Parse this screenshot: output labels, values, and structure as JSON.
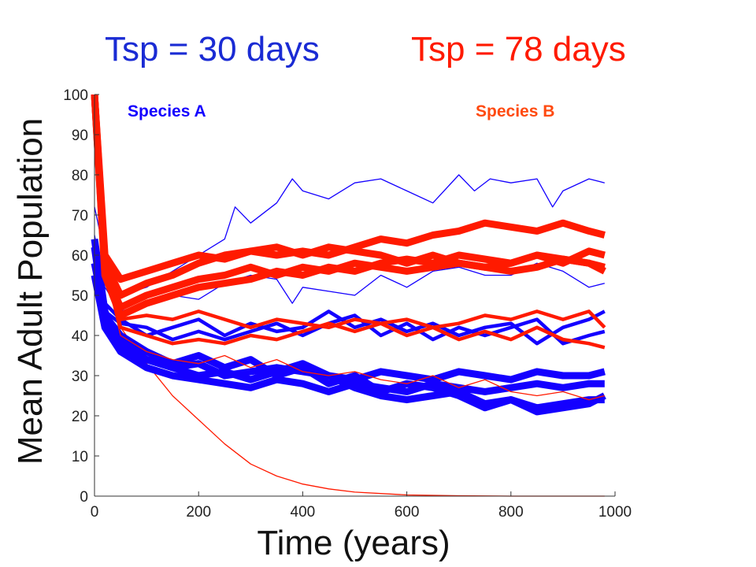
{
  "header": {
    "left_title": "Tsp = 30 days",
    "right_title": "Tsp = 78 days"
  },
  "colors": {
    "species_a": "#1400ff",
    "species_b": "#ff1a00",
    "left_title": "#1a2bd4",
    "right_title": "#ff1a00",
    "species_b_label": "#ff4a10",
    "axis": "#333333"
  },
  "chart_data": {
    "type": "line",
    "xlabel": "Time (years)",
    "ylabel": "Mean Adult Population",
    "xlim": [
      0,
      1000
    ],
    "ylim": [
      0,
      100
    ],
    "xticks": [
      0,
      200,
      400,
      600,
      800,
      1000
    ],
    "yticks": [
      0,
      10,
      20,
      30,
      40,
      50,
      60,
      70,
      80,
      90,
      100
    ],
    "grid": false,
    "legend": [
      {
        "label": "Species A",
        "color": "#1400ff",
        "position": "top-left"
      },
      {
        "label": "Species B",
        "color": "#ff4a10",
        "position": "top-right"
      }
    ],
    "series": [
      {
        "species": "B",
        "width": "thin",
        "x": [
          0,
          20,
          50,
          100,
          150,
          200,
          250,
          300,
          350,
          400,
          450,
          500,
          600,
          700,
          800,
          900,
          980
        ],
        "y": [
          100,
          58,
          42,
          33,
          25,
          19,
          13,
          8,
          5,
          3,
          1.8,
          1,
          0.3,
          0.1,
          0,
          0,
          0
        ]
      },
      {
        "species": "A",
        "width": "thin",
        "x": [
          0,
          20,
          50,
          100,
          150,
          200,
          250,
          270,
          300,
          350,
          380,
          400,
          450,
          500,
          550,
          600,
          650,
          700,
          730,
          760,
          800,
          850,
          880,
          900,
          950,
          980
        ],
        "y": [
          72,
          60,
          50,
          52,
          56,
          60,
          64,
          72,
          68,
          73,
          79,
          76,
          74,
          78,
          79,
          76,
          73,
          80,
          76,
          79,
          78,
          79,
          72,
          76,
          79,
          78
        ]
      },
      {
        "species": "A",
        "width": "thin",
        "x": [
          0,
          20,
          50,
          100,
          150,
          200,
          250,
          300,
          350,
          380,
          400,
          450,
          500,
          550,
          600,
          650,
          700,
          750,
          800,
          850,
          900,
          950,
          980
        ],
        "y": [
          65,
          52,
          46,
          48,
          50,
          49,
          53,
          55,
          54,
          48,
          52,
          51,
          50,
          55,
          52,
          56,
          57,
          55,
          55,
          58,
          56,
          52,
          53
        ]
      },
      {
        "species": "A",
        "width": "medium",
        "x": [
          0,
          20,
          50,
          100,
          150,
          200,
          250,
          300,
          350,
          400,
          450,
          500,
          550,
          600,
          650,
          700,
          750,
          800,
          850,
          900,
          950,
          980
        ],
        "y": [
          60,
          48,
          44,
          40,
          42,
          44,
          40,
          43,
          41,
          42,
          46,
          42,
          44,
          41,
          43,
          40,
          42,
          43,
          38,
          42,
          44,
          46
        ]
      },
      {
        "species": "A",
        "width": "medium",
        "x": [
          0,
          20,
          50,
          100,
          150,
          200,
          250,
          300,
          350,
          400,
          450,
          500,
          550,
          600,
          650,
          700,
          750,
          800,
          850,
          900,
          950,
          980
        ],
        "y": [
          58,
          46,
          43,
          42,
          39,
          41,
          39,
          41,
          43,
          40,
          43,
          45,
          40,
          43,
          39,
          42,
          40,
          42,
          44,
          38,
          40,
          41
        ]
      },
      {
        "species": "A",
        "width": "thick",
        "x": [
          0,
          20,
          50,
          100,
          150,
          200,
          250,
          300,
          350,
          400,
          450,
          500,
          550,
          600,
          650,
          700,
          750,
          800,
          850,
          900,
          950,
          980
        ],
        "y": [
          62,
          44,
          38,
          34,
          32,
          30,
          31,
          29,
          31,
          33,
          30,
          29,
          31,
          30,
          29,
          31,
          30,
          29,
          31,
          30,
          30,
          31
        ]
      },
      {
        "species": "A",
        "width": "thick",
        "x": [
          0,
          20,
          50,
          100,
          150,
          200,
          250,
          300,
          350,
          400,
          450,
          500,
          550,
          600,
          650,
          700,
          750,
          800,
          850,
          900,
          950,
          980
        ],
        "y": [
          64,
          46,
          36,
          32,
          30,
          29,
          28,
          27,
          29,
          28,
          26,
          28,
          27,
          26,
          28,
          27,
          26,
          27,
          28,
          27,
          28,
          28
        ]
      },
      {
        "species": "A",
        "width": "thick",
        "x": [
          0,
          20,
          50,
          100,
          150,
          200,
          250,
          300,
          350,
          400,
          450,
          500,
          550,
          600,
          650,
          700,
          750,
          800,
          850,
          900,
          950,
          980
        ],
        "y": [
          55,
          42,
          36,
          34,
          32,
          33,
          30,
          31,
          32,
          31,
          30,
          27,
          25,
          24,
          25,
          26,
          23,
          24,
          22,
          23,
          24,
          24
        ]
      },
      {
        "species": "A",
        "width": "thick",
        "x": [
          0,
          20,
          50,
          100,
          150,
          200,
          250,
          300,
          350,
          400,
          450,
          500,
          550,
          600,
          650,
          700,
          750,
          800,
          850,
          900,
          950,
          980
        ],
        "y": [
          58,
          45,
          40,
          36,
          33,
          35,
          32,
          34,
          30,
          32,
          28,
          30,
          26,
          28,
          27,
          25,
          22,
          24,
          21,
          22,
          23,
          25
        ]
      },
      {
        "species": "B",
        "width": "medium",
        "x": [
          0,
          20,
          50,
          100,
          150,
          200,
          250,
          300,
          350,
          400,
          450,
          500,
          550,
          600,
          650,
          700,
          750,
          800,
          850,
          900,
          950,
          980
        ],
        "y": [
          100,
          62,
          44,
          45,
          44,
          46,
          44,
          42,
          44,
          43,
          42,
          44,
          43,
          44,
          42,
          43,
          45,
          44,
          46,
          44,
          46,
          42
        ]
      },
      {
        "species": "B",
        "width": "medium",
        "x": [
          0,
          20,
          50,
          100,
          150,
          200,
          250,
          300,
          350,
          400,
          450,
          500,
          550,
          600,
          650,
          700,
          750,
          800,
          850,
          900,
          950,
          980
        ],
        "y": [
          100,
          58,
          42,
          40,
          38,
          39,
          38,
          40,
          39,
          41,
          43,
          41,
          43,
          40,
          42,
          39,
          41,
          39,
          42,
          39,
          38,
          37
        ]
      },
      {
        "species": "B",
        "width": "thin",
        "x": [
          0,
          20,
          50,
          100,
          150,
          200,
          250,
          300,
          350,
          400,
          450,
          500,
          550,
          600,
          650,
          700,
          750,
          800,
          850,
          900,
          950,
          980
        ],
        "y": [
          100,
          56,
          40,
          36,
          34,
          33,
          35,
          32,
          34,
          31,
          30,
          31,
          29,
          28,
          30,
          27,
          29,
          26,
          25,
          26,
          24,
          25
        ]
      },
      {
        "species": "B",
        "width": "thick",
        "x": [
          0,
          20,
          50,
          100,
          150,
          200,
          250,
          300,
          350,
          400,
          450,
          500,
          550,
          600,
          650,
          700,
          750,
          800,
          850,
          900,
          950,
          980
        ],
        "y": [
          100,
          60,
          54,
          56,
          58,
          60,
          59,
          61,
          60,
          61,
          60,
          62,
          64,
          63,
          65,
          66,
          68,
          67,
          66,
          68,
          66,
          65
        ]
      },
      {
        "species": "B",
        "width": "thick",
        "x": [
          0,
          20,
          50,
          100,
          150,
          200,
          250,
          300,
          350,
          400,
          450,
          500,
          550,
          600,
          650,
          700,
          750,
          800,
          850,
          900,
          950,
          980
        ],
        "y": [
          100,
          58,
          50,
          53,
          55,
          58,
          60,
          61,
          62,
          60,
          62,
          61,
          60,
          58,
          60,
          58,
          57,
          58,
          60,
          58,
          61,
          60
        ]
      },
      {
        "species": "B",
        "width": "thick",
        "x": [
          0,
          20,
          50,
          100,
          150,
          200,
          250,
          300,
          350,
          400,
          450,
          500,
          550,
          600,
          650,
          700,
          750,
          800,
          850,
          900,
          950,
          980
        ],
        "y": [
          100,
          56,
          47,
          50,
          52,
          54,
          55,
          57,
          55,
          57,
          56,
          58,
          57,
          56,
          57,
          58,
          57,
          56,
          57,
          59,
          58,
          57
        ]
      },
      {
        "species": "B",
        "width": "thick",
        "x": [
          0,
          20,
          50,
          100,
          150,
          200,
          250,
          300,
          350,
          400,
          450,
          500,
          550,
          600,
          650,
          700,
          750,
          800,
          850,
          900,
          950,
          980
        ],
        "y": [
          100,
          55,
          45,
          48,
          50,
          52,
          53,
          54,
          56,
          55,
          57,
          56,
          58,
          59,
          58,
          60,
          59,
          58,
          60,
          59,
          58,
          56
        ]
      }
    ]
  }
}
